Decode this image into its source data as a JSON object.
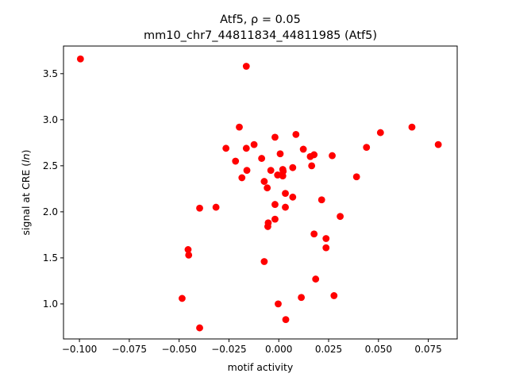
{
  "chart_data": {
    "type": "scatter",
    "title_line1": "Atf5, ρ = 0.05",
    "title_line2": "mm10_chr7_44811834_44811985 (Atf5)",
    "xlabel": "motif activity",
    "ylabel": "signal at CRE (ln)",
    "xlim": [
      -0.108,
      0.0895
    ],
    "ylim": [
      0.62,
      3.8
    ],
    "xticks": [
      -0.1,
      -0.075,
      -0.05,
      -0.025,
      0.0,
      0.025,
      0.05,
      0.075
    ],
    "xtick_labels": [
      "−0.100",
      "−0.075",
      "−0.050",
      "−0.025",
      "0.000",
      "0.025",
      "0.050",
      "0.075"
    ],
    "yticks": [
      1.0,
      1.5,
      2.0,
      2.5,
      3.0,
      3.5
    ],
    "ytick_labels": [
      "1.0",
      "1.5",
      "2.0",
      "2.5",
      "3.0",
      "3.5"
    ],
    "grid": false,
    "marker_color": "#ff0000",
    "points": [
      {
        "x": -0.0995,
        "y": 3.66
      },
      {
        "x": -0.0485,
        "y": 1.06
      },
      {
        "x": -0.0455,
        "y": 1.59
      },
      {
        "x": -0.0452,
        "y": 1.53
      },
      {
        "x": -0.0397,
        "y": 2.04
      },
      {
        "x": -0.0397,
        "y": 0.74
      },
      {
        "x": -0.0315,
        "y": 2.05
      },
      {
        "x": -0.0265,
        "y": 2.69
      },
      {
        "x": -0.0217,
        "y": 2.55
      },
      {
        "x": -0.0198,
        "y": 2.92
      },
      {
        "x": -0.0185,
        "y": 2.37
      },
      {
        "x": -0.0163,
        "y": 2.69
      },
      {
        "x": -0.016,
        "y": 2.45
      },
      {
        "x": -0.0163,
        "y": 3.58
      },
      {
        "x": -0.0124,
        "y": 2.73
      },
      {
        "x": -0.0086,
        "y": 2.58
      },
      {
        "x": -0.0073,
        "y": 1.46
      },
      {
        "x": -0.0073,
        "y": 2.33
      },
      {
        "x": -0.0058,
        "y": 2.26
      },
      {
        "x": -0.0055,
        "y": 1.84
      },
      {
        "x": -0.0053,
        "y": 1.88
      },
      {
        "x": -0.004,
        "y": 2.45
      },
      {
        "x": -0.0019,
        "y": 2.81
      },
      {
        "x": -0.0019,
        "y": 2.08
      },
      {
        "x": -0.0019,
        "y": 1.92
      },
      {
        "x": -0.0006,
        "y": 2.4
      },
      {
        "x": -0.0003,
        "y": 1.0
      },
      {
        "x": 0.0007,
        "y": 2.63
      },
      {
        "x": 0.002,
        "y": 2.46
      },
      {
        "x": 0.002,
        "y": 2.39
      },
      {
        "x": 0.0022,
        "y": 2.44
      },
      {
        "x": 0.0033,
        "y": 2.2
      },
      {
        "x": 0.0033,
        "y": 2.05
      },
      {
        "x": 0.0035,
        "y": 0.83
      },
      {
        "x": 0.007,
        "y": 2.48
      },
      {
        "x": 0.007,
        "y": 2.16
      },
      {
        "x": 0.0086,
        "y": 2.84
      },
      {
        "x": 0.0113,
        "y": 1.07
      },
      {
        "x": 0.0123,
        "y": 2.68
      },
      {
        "x": 0.0158,
        "y": 2.6
      },
      {
        "x": 0.0165,
        "y": 2.5
      },
      {
        "x": 0.0177,
        "y": 2.62
      },
      {
        "x": 0.0177,
        "y": 1.76
      },
      {
        "x": 0.0185,
        "y": 1.27
      },
      {
        "x": 0.0215,
        "y": 2.13
      },
      {
        "x": 0.0237,
        "y": 1.71
      },
      {
        "x": 0.0237,
        "y": 1.61
      },
      {
        "x": 0.0268,
        "y": 2.61
      },
      {
        "x": 0.0277,
        "y": 1.09
      },
      {
        "x": 0.0308,
        "y": 1.95
      },
      {
        "x": 0.039,
        "y": 2.38
      },
      {
        "x": 0.044,
        "y": 2.7
      },
      {
        "x": 0.051,
        "y": 2.86
      },
      {
        "x": 0.0668,
        "y": 2.92
      },
      {
        "x": 0.08,
        "y": 2.73
      }
    ]
  }
}
